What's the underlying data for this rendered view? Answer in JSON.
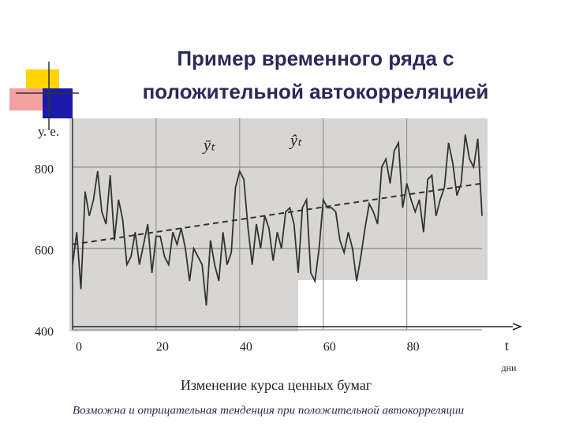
{
  "chart_data": {
    "type": "line",
    "title": [
      "Пример временного ряда с",
      "положительной автокорреляцией"
    ],
    "ylabel": "у. е.",
    "xlabel": "t",
    "xunit": "дни",
    "caption": "Изменение курса ценных бумаг",
    "note": "Возможна и отрицательная тенденция при положительной автокорреляции",
    "xlim": [
      0,
      98
    ],
    "xticks": [
      0,
      20,
      40,
      60,
      80
    ],
    "ylim": [
      400,
      920
    ],
    "yticks": [
      400,
      600,
      800
    ],
    "grid": true,
    "series": [
      {
        "name": "ȳₜ",
        "color": "#333333",
        "dashed": false,
        "x": [
          0,
          1,
          2,
          3,
          4,
          5,
          6,
          7,
          8,
          9,
          10,
          11,
          12,
          13,
          14,
          15,
          16,
          17,
          18,
          19,
          20,
          21,
          22,
          23,
          24,
          25,
          26,
          27,
          28,
          29,
          30,
          31,
          32,
          33,
          34,
          35,
          36,
          37,
          38,
          39,
          40,
          41,
          42,
          43,
          44,
          45,
          46,
          47,
          48,
          49,
          50,
          51,
          52,
          53,
          54,
          55,
          56,
          57,
          58,
          59,
          60,
          61,
          62,
          63,
          64,
          65,
          66,
          67,
          68,
          69,
          70,
          71,
          72,
          73,
          74,
          75,
          76,
          77,
          78,
          79,
          80,
          81,
          82,
          83,
          84,
          85,
          86,
          87,
          88,
          89,
          90,
          91,
          92,
          93,
          94,
          95,
          96,
          97,
          98
        ],
        "values": [
          560,
          640,
          500,
          740,
          680,
          720,
          790,
          690,
          660,
          780,
          620,
          720,
          670,
          560,
          580,
          640,
          560,
          610,
          660,
          540,
          630,
          630,
          580,
          560,
          640,
          610,
          650,
          600,
          520,
          600,
          580,
          560,
          460,
          620,
          560,
          520,
          640,
          560,
          590,
          750,
          790,
          770,
          650,
          560,
          660,
          600,
          680,
          650,
          570,
          640,
          600,
          690,
          700,
          660,
          540,
          700,
          720,
          540,
          520,
          600,
          720,
          700,
          700,
          690,
          620,
          590,
          640,
          600,
          520,
          580,
          650,
          710,
          690,
          660,
          800,
          820,
          760,
          840,
          860,
          700,
          760,
          720,
          690,
          720,
          640,
          770,
          780,
          680,
          720,
          750,
          860,
          810,
          730,
          760,
          880,
          820,
          800,
          870,
          680
        ]
      },
      {
        "name": "ŷₜ",
        "color": "#333333",
        "dashed": true,
        "x": [
          0,
          98
        ],
        "values": [
          610,
          760
        ]
      }
    ]
  }
}
